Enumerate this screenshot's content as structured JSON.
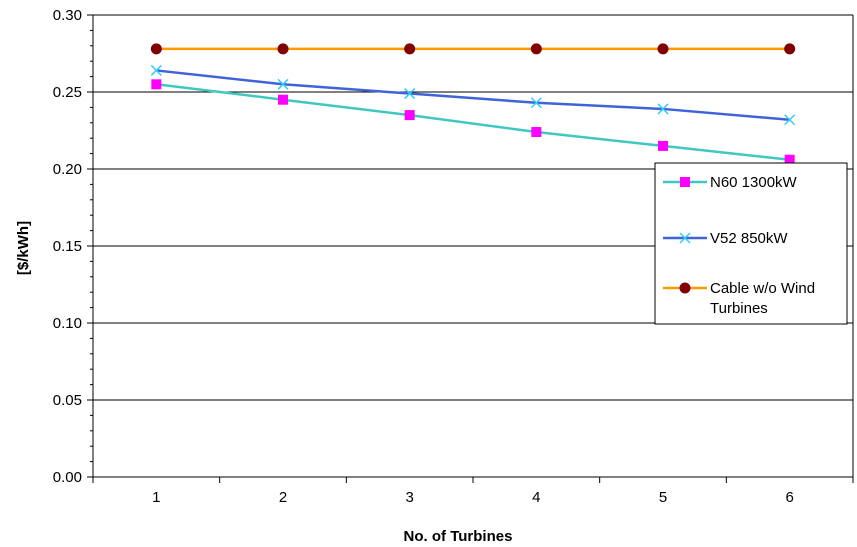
{
  "chart_data": {
    "type": "line",
    "title": "",
    "xlabel": "No. of Turbines",
    "ylabel": "[$/kWh]",
    "categories": [
      "1",
      "2",
      "3",
      "4",
      "5",
      "6"
    ],
    "ylim": [
      0,
      0.3
    ],
    "yticks": [
      "0.00",
      "0.05",
      "0.10",
      "0.15",
      "0.20",
      "0.25",
      "0.30"
    ],
    "grid": "horizontal major gridlines",
    "legend_position": "right",
    "series": [
      {
        "name": "N60 1300kW",
        "color": "#40C8C0",
        "marker_color": "#FF00FF",
        "marker": "square",
        "values": [
          0.255,
          0.245,
          0.235,
          0.224,
          0.215,
          0.206
        ]
      },
      {
        "name": "V52 850kW",
        "color": "#3F63D9",
        "marker_color": "#33CCFF",
        "marker": "x",
        "values": [
          0.264,
          0.255,
          0.249,
          0.243,
          0.239,
          0.232
        ]
      },
      {
        "name": "Cable w/o Wind Turbines",
        "color": "#FF9900",
        "marker_color": "#800000",
        "marker": "circle",
        "values": [
          0.278,
          0.278,
          0.278,
          0.278,
          0.278,
          0.278
        ]
      }
    ]
  }
}
